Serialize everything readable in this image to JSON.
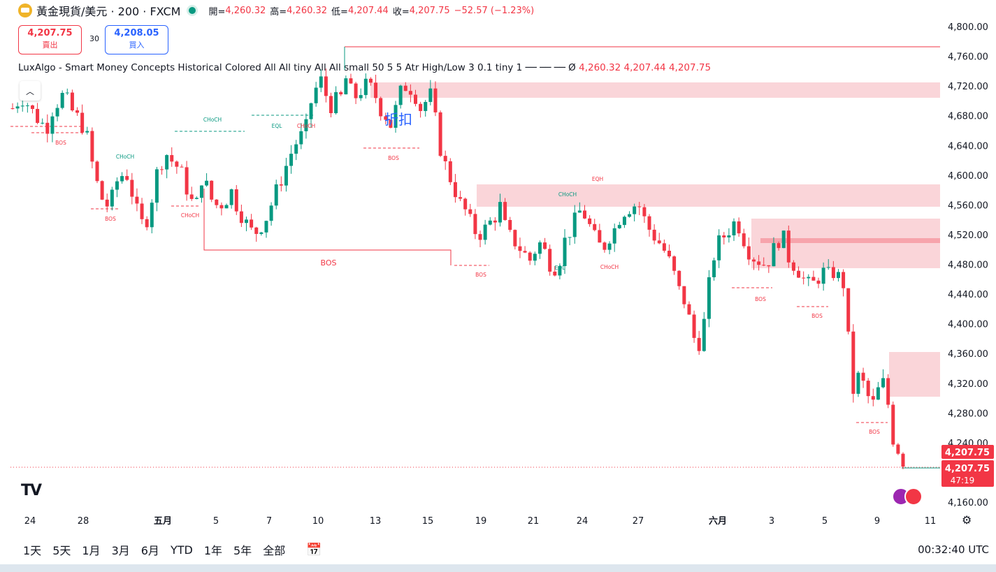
{
  "header": {
    "symbol": "黃金現貨/美元 · 200 · FXCM",
    "open_label": "開=",
    "open": "4,260.32",
    "high_label": "高=",
    "high": "4,260.32",
    "low_label": "低=",
    "low": "4,207.44",
    "close_label": "收=",
    "close": "4,207.75",
    "change": "−52.57 (−1.23%)"
  },
  "trade": {
    "sell_price": "4,207.75",
    "sell_label": "賣出",
    "spread": "30",
    "buy_price": "4,208.05",
    "buy_label": "買入"
  },
  "indicator": {
    "name": "LuxAlgo - Smart Money Concepts Historical Colored All All tiny All All small 50 5 5 Atr High/Low 3 0.1 tiny 1 ── ── ──  Ø",
    "v1": "4,260.32",
    "v2": "4,207.44",
    "v3": "4,207.75"
  },
  "bottom": {
    "ranges": [
      "1天",
      "5天",
      "1月",
      "3月",
      "6月",
      "YTD",
      "1年",
      "5年",
      "全部"
    ],
    "clock": "00:32:40 UTC"
  },
  "colors": {
    "up": "#089981",
    "down": "#f23645",
    "zone": "#f8c7cc",
    "text": "#131722"
  },
  "chart_data": {
    "type": "candlestick",
    "symbol": "黃金現貨/美元",
    "ylim": [
      4140,
      4840
    ],
    "y_ticks": [
      "4,800.00",
      "4,760.00",
      "4,720.00",
      "4,680.00",
      "4,640.00",
      "4,600.00",
      "4,560.00",
      "4,520.00",
      "4,480.00",
      "4,440.00",
      "4,400.00",
      "4,360.00",
      "4,320.00",
      "4,280.00",
      "4,240.00",
      "4,160.00"
    ],
    "x_ticks": [
      "24",
      "28",
      "五月",
      "5",
      "7",
      "10",
      "13",
      "15",
      "19",
      "21",
      "24",
      "27",
      "六月",
      "3",
      "5",
      "9",
      "11"
    ],
    "last_price_label": "4,207.75",
    "last_price_label2": "4,207.75",
    "countdown": "47:19",
    "overlay_text": "折扣",
    "key_levels": {
      "close": 4207.75
    },
    "anchors": [
      4690,
      4700,
      4705,
      4690,
      4680,
      4670,
      4665,
      4690,
      4700,
      4710,
      4690,
      4680,
      4670,
      4650,
      4610,
      4580,
      4560,
      4560,
      4590,
      4600,
      4600,
      4570,
      4540,
      4530,
      4560,
      4600,
      4620,
      4630,
      4615,
      4610,
      4590,
      4565,
      4560,
      4600,
      4580,
      4560,
      4560,
      4565,
      4580,
      4560,
      4545,
      4530,
      4520,
      4530,
      4540,
      4560,
      4580,
      4600,
      4620,
      4640,
      4650,
      4660,
      4700,
      4720,
      4730,
      4690,
      4700,
      4700,
      4730,
      4710,
      4705,
      4720,
      4720,
      4710,
      4690,
      4680,
      4665,
      4700,
      4720,
      4720,
      4710,
      4690,
      4700,
      4710,
      4650,
      4620,
      4600,
      4580,
      4560,
      4550,
      4530,
      4520,
      4525,
      4535,
      4545,
      4560,
      4520,
      4515,
      4505,
      4495,
      4485,
      4500,
      4510,
      4490,
      4475,
      4480,
      4510,
      4525,
      4540,
      4555,
      4540,
      4520,
      4505,
      4505,
      4520,
      4530,
      4550,
      4555,
      4560,
      4560,
      4540,
      4525,
      4515,
      4505,
      4490,
      4470,
      4445,
      4430,
      4400,
      4370,
      4380,
      4440,
      4490,
      4510,
      4520,
      4530,
      4540,
      4520,
      4500,
      4490,
      4485,
      4480,
      4490,
      4510,
      4520,
      4490,
      4480,
      4470,
      4455,
      4450,
      4460,
      4470,
      4465,
      4470,
      4460,
      4450,
      4300,
      4330,
      4320,
      4300,
      4290,
      4320,
      4320,
      4250,
      4235,
      4207.75
    ],
    "labels": [
      {
        "text": "BOS",
        "color": "down"
      },
      {
        "text": "CHoCH",
        "color": "up"
      },
      {
        "text": "BOS",
        "color": "down"
      },
      {
        "text": "CHoCH",
        "color": "down"
      },
      {
        "text": "CHoCH",
        "color": "up"
      },
      {
        "text": "EQL",
        "color": "up"
      },
      {
        "text": "CHoCH",
        "color": "down"
      },
      {
        "text": "BOS",
        "color": "down"
      },
      {
        "text": "BOS",
        "color": "down"
      },
      {
        "text": "BOS",
        "color": "down"
      },
      {
        "text": "EQH",
        "color": "down"
      },
      {
        "text": "CHoCH",
        "color": "up"
      },
      {
        "text": "EQL",
        "color": "up"
      },
      {
        "text": "CHoCH",
        "color": "down"
      },
      {
        "text": "BOS",
        "color": "down"
      },
      {
        "text": "BOS",
        "color": "down"
      },
      {
        "text": "BOS",
        "color": "down"
      }
    ]
  }
}
